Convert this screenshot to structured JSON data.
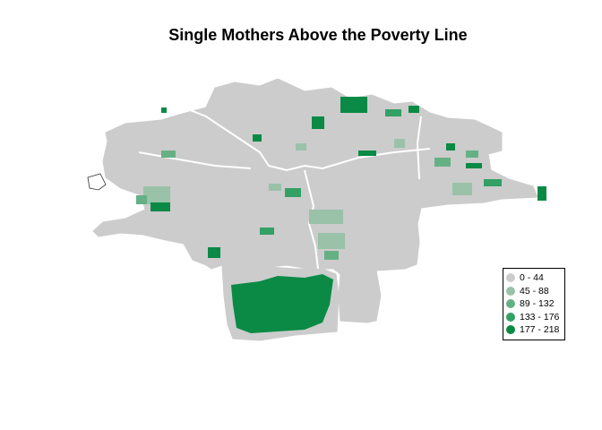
{
  "title": "Single Mothers Above the Poverty Line",
  "colors": {
    "bin_0": "#cccccc",
    "bin_1": "#99c2a8",
    "bin_2": "#66b085",
    "bin_3": "#33a066",
    "bin_4": "#0a8a45",
    "background": "#ffffff"
  },
  "legend": {
    "items": [
      {
        "label": "0 - 44",
        "color": "#cccccc"
      },
      {
        "label": "45 - 88",
        "color": "#99c2a8"
      },
      {
        "label": "89 - 132",
        "color": "#66b085"
      },
      {
        "label": "133 - 176",
        "color": "#33a066"
      },
      {
        "label": "177 - 218",
        "color": "#0a8a45"
      }
    ]
  }
}
